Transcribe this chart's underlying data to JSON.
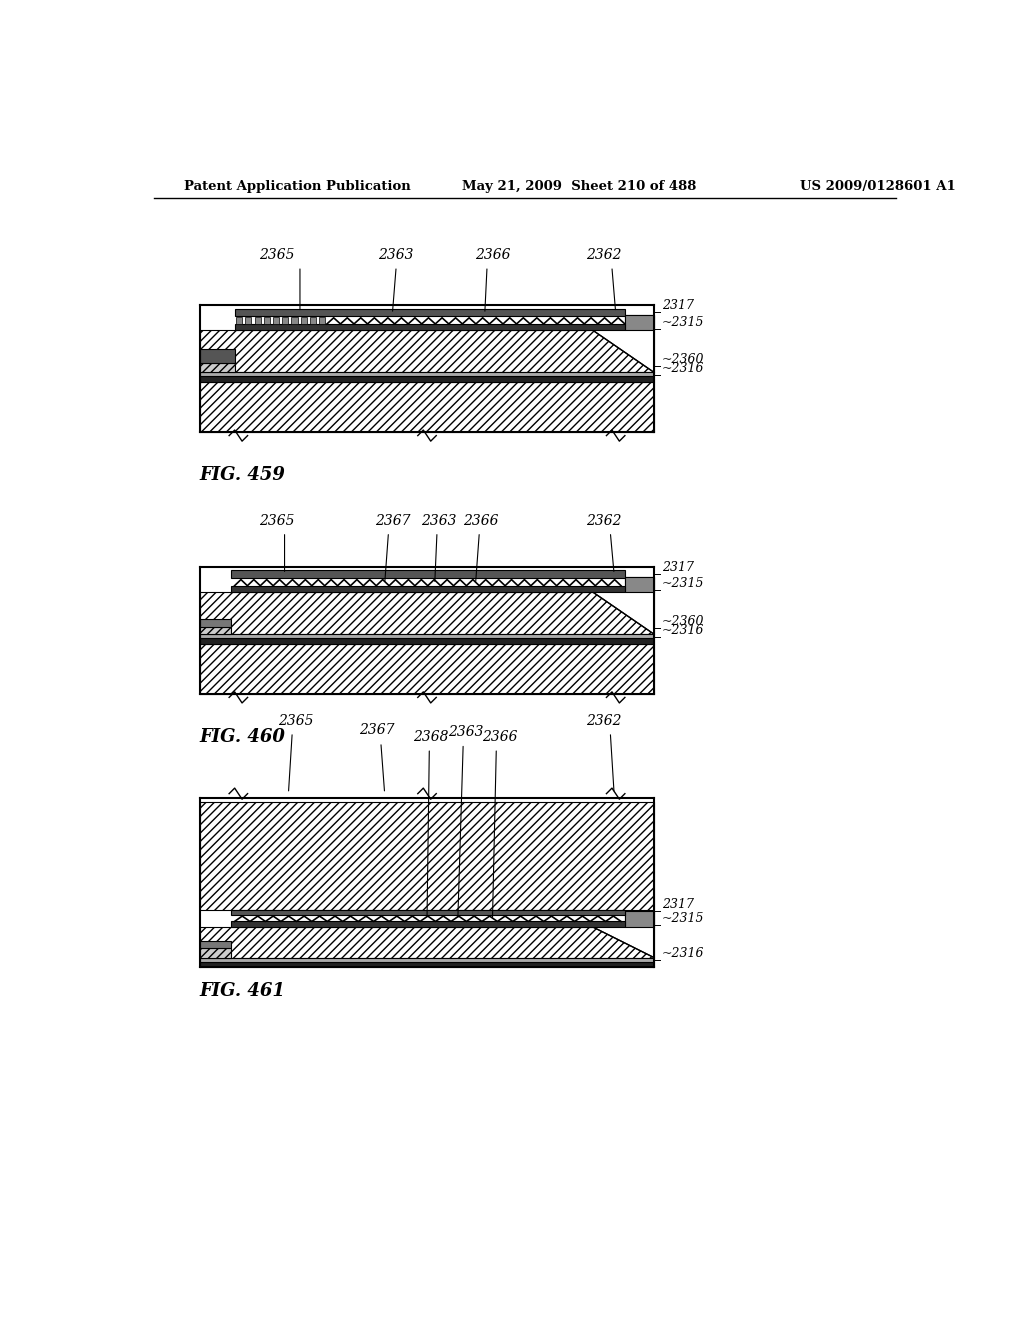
{
  "title_left": "Patent Application Publication",
  "title_center": "May 21, 2009  Sheet 210 of 488",
  "title_right": "US 2009/0128601 A1",
  "bg_color": "#ffffff",
  "fig459_label": "FIG. 459",
  "fig460_label": "FIG. 460",
  "fig461_label": "FIG. 461"
}
